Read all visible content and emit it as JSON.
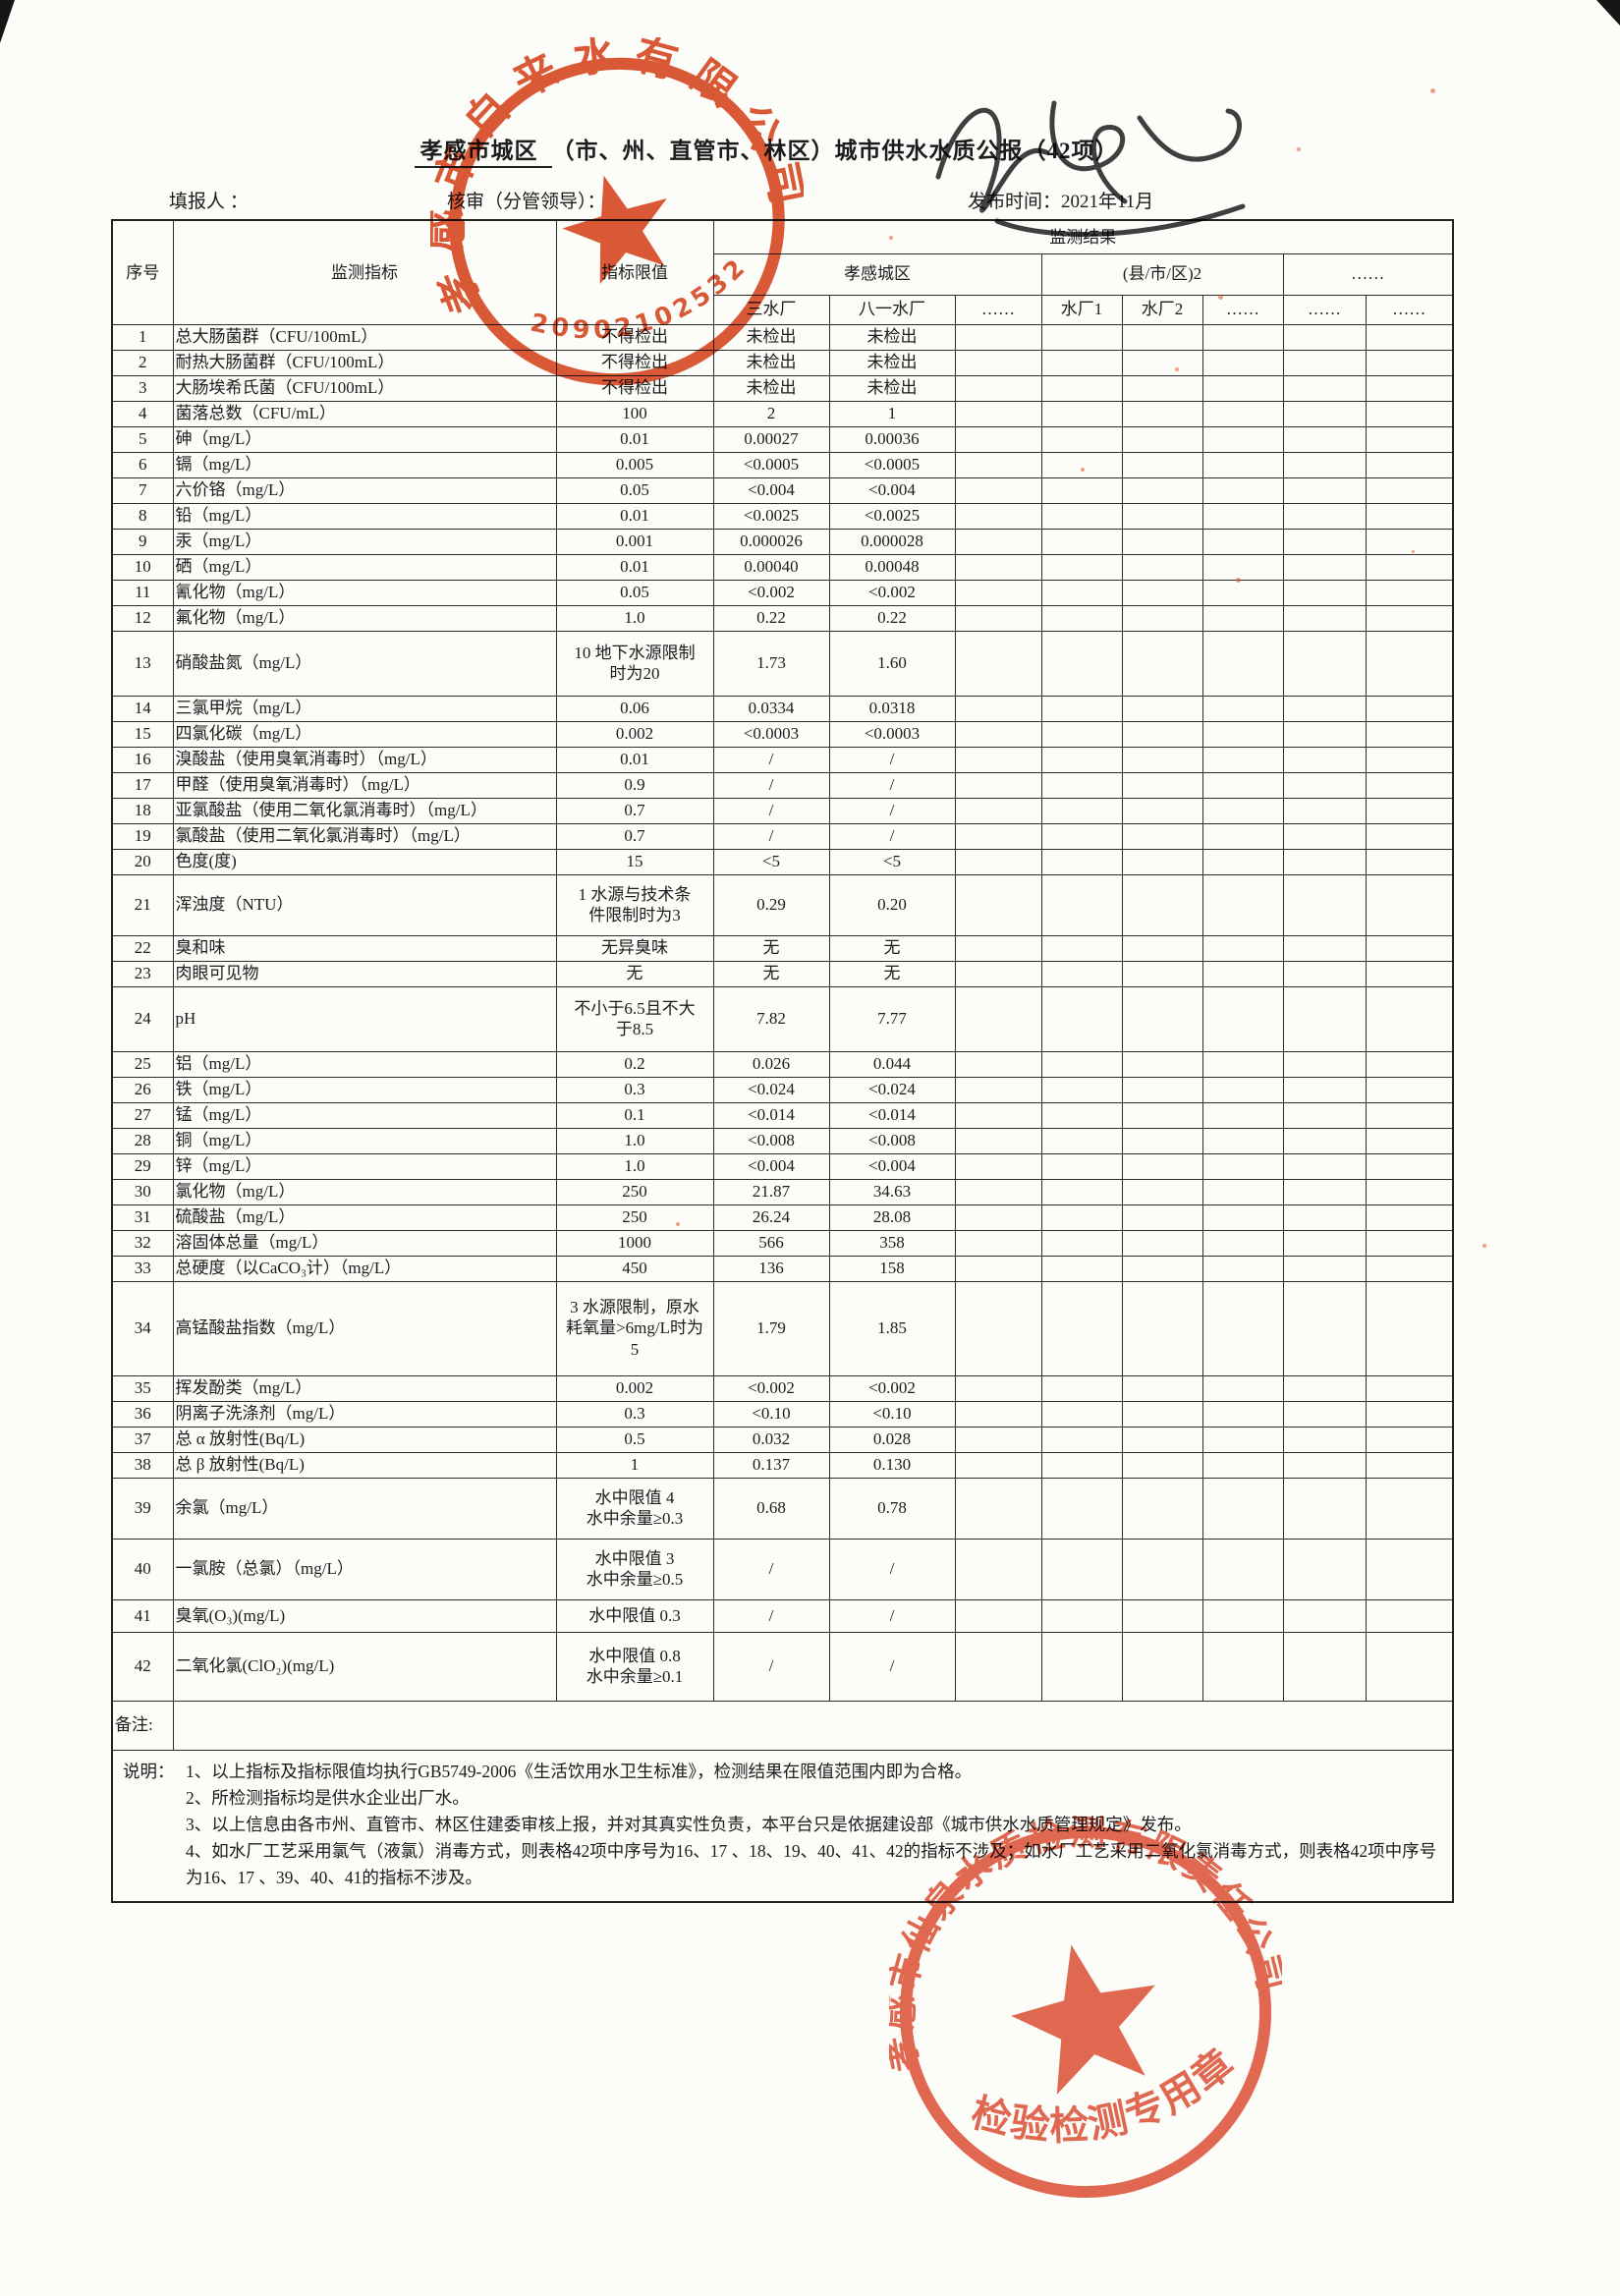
{
  "page": {
    "title_underlined": "孝感市城区",
    "title_rest": "（市、州、直管市、林区）城市供水水质公报（42项）",
    "filler_label": "填报人 ：",
    "reviewer_label": "核审（分管领导）：",
    "publish_label": "发布时间：2021年11月"
  },
  "table": {
    "headers": {
      "seq": "序号",
      "indicator": "监测指标",
      "limit": "指标限值",
      "results": "监测结果",
      "group1": "孝感城区",
      "group2": "(县/市/区)2",
      "group3": "……",
      "sub": [
        "三水厂",
        "八一水厂",
        "……",
        "水厂1",
        "水厂2",
        "……",
        "……",
        "……"
      ]
    },
    "rows": [
      {
        "no": "1",
        "name": "总大肠菌群（CFU/100mL）",
        "limit": "不得检出",
        "v1": "未检出",
        "v2": "未检出"
      },
      {
        "no": "2",
        "name": "耐热大肠菌群（CFU/100mL）",
        "limit": "不得检出",
        "v1": "未检出",
        "v2": "未检出"
      },
      {
        "no": "3",
        "name": "大肠埃希氏菌（CFU/100mL）",
        "limit": "不得检出",
        "v1": "未检出",
        "v2": "未检出"
      },
      {
        "no": "4",
        "name": "菌落总数（CFU/mL）",
        "limit": "100",
        "v1": "2",
        "v2": "1"
      },
      {
        "no": "5",
        "name": "砷（mg/L）",
        "limit": "0.01",
        "v1": "0.00027",
        "v2": "0.00036"
      },
      {
        "no": "6",
        "name": "镉（mg/L）",
        "limit": "0.005",
        "v1": "<0.0005",
        "v2": "<0.0005"
      },
      {
        "no": "7",
        "name": "六价铬（mg/L）",
        "limit": "0.05",
        "v1": "<0.004",
        "v2": "<0.004"
      },
      {
        "no": "8",
        "name": "铅（mg/L）",
        "limit": "0.01",
        "v1": "<0.0025",
        "v2": "<0.0025"
      },
      {
        "no": "9",
        "name": "汞（mg/L）",
        "limit": "0.001",
        "v1": "0.000026",
        "v2": "0.000028"
      },
      {
        "no": "10",
        "name": "硒（mg/L）",
        "limit": "0.01",
        "v1": "0.00040",
        "v2": "0.00048"
      },
      {
        "no": "11",
        "name": "氰化物（mg/L）",
        "limit": "0.05",
        "v1": "<0.002",
        "v2": "<0.002"
      },
      {
        "no": "12",
        "name": "氟化物（mg/L）",
        "limit": "1.0",
        "v1": "0.22",
        "v2": "0.22"
      },
      {
        "no": "13",
        "name": "硝酸盐氮（mg/L）",
        "limit": "10 地下水源限制\n时为20",
        "v1": "1.73",
        "v2": "1.60",
        "h": 66
      },
      {
        "no": "14",
        "name": "三氯甲烷（mg/L）",
        "limit": "0.06",
        "v1": "0.0334",
        "v2": "0.0318"
      },
      {
        "no": "15",
        "name": "四氯化碳（mg/L）",
        "limit": "0.002",
        "v1": "<0.0003",
        "v2": "<0.0003"
      },
      {
        "no": "16",
        "name": "溴酸盐（使用臭氧消毒时）（mg/L）",
        "limit": "0.01",
        "v1": "/",
        "v2": "/"
      },
      {
        "no": "17",
        "name": "甲醛（使用臭氧消毒时）（mg/L）",
        "limit": "0.9",
        "v1": "/",
        "v2": "/"
      },
      {
        "no": "18",
        "name": "亚氯酸盐（使用二氧化氯消毒时）（mg/L）",
        "limit": "0.7",
        "v1": "/",
        "v2": "/"
      },
      {
        "no": "19",
        "name": "氯酸盐（使用二氧化氯消毒时）（mg/L）",
        "limit": "0.7",
        "v1": "/",
        "v2": "/"
      },
      {
        "no": "20",
        "name": "色度(度)",
        "limit": "15",
        "v1": "<5",
        "v2": "<5"
      },
      {
        "no": "21",
        "name": "浑浊度（NTU）",
        "limit": "1  水源与技术条\n件限制时为3",
        "v1": "0.29",
        "v2": "0.20",
        "h": 62
      },
      {
        "no": "22",
        "name": "臭和味",
        "limit": "无异臭味",
        "v1": "无",
        "v2": "无"
      },
      {
        "no": "23",
        "name": "肉眼可见物",
        "limit": "无",
        "v1": "无",
        "v2": "无"
      },
      {
        "no": "24",
        "name": "pH",
        "limit": "不小于6.5且不大\n于8.5",
        "v1": "7.82",
        "v2": "7.77",
        "h": 66
      },
      {
        "no": "25",
        "name": "铝（mg/L）",
        "limit": "0.2",
        "v1": "0.026",
        "v2": "0.044"
      },
      {
        "no": "26",
        "name": "铁（mg/L）",
        "limit": "0.3",
        "v1": "<0.024",
        "v2": "<0.024"
      },
      {
        "no": "27",
        "name": "锰（mg/L）",
        "limit": "0.1",
        "v1": "<0.014",
        "v2": "<0.014"
      },
      {
        "no": "28",
        "name": "铜（mg/L）",
        "limit": "1.0",
        "v1": "<0.008",
        "v2": "<0.008"
      },
      {
        "no": "29",
        "name": "锌（mg/L）",
        "limit": "1.0",
        "v1": "<0.004",
        "v2": "<0.004"
      },
      {
        "no": "30",
        "name": "氯化物（mg/L）",
        "limit": "250",
        "v1": "21.87",
        "v2": "34.63"
      },
      {
        "no": "31",
        "name": "硫酸盐（mg/L）",
        "limit": "250",
        "v1": "26.24",
        "v2": "28.08"
      },
      {
        "no": "32",
        "name": "溶固体总量（mg/L）",
        "limit": "1000",
        "v1": "566",
        "v2": "358"
      },
      {
        "no": "33",
        "name": "总硬度（以CaCO₃计）（mg/L）",
        "limit": "450",
        "v1": "136",
        "v2": "158"
      },
      {
        "no": "34",
        "name": "高锰酸盐指数（mg/L）",
        "limit": "3 水源限制，原水\n耗氧量>6mg/L时为\n5",
        "v1": "1.79",
        "v2": "1.85",
        "h": 96
      },
      {
        "no": "35",
        "name": "挥发酚类（mg/L）",
        "limit": "0.002",
        "v1": "<0.002",
        "v2": "<0.002"
      },
      {
        "no": "36",
        "name": "阴离子洗涤剂（mg/L）",
        "limit": "0.3",
        "v1": "<0.10",
        "v2": "<0.10"
      },
      {
        "no": "37",
        "name": "总 α 放射性(Bq/L)",
        "limit": "0.5",
        "v1": "0.032",
        "v2": "0.028"
      },
      {
        "no": "38",
        "name": "总 β 放射性(Bq/L)",
        "limit": "1",
        "v1": "0.137",
        "v2": "0.130"
      },
      {
        "no": "39",
        "name": "余氯（mg/L）",
        "limit": "水中限值 4\n水中余量≥0.3",
        "v1": "0.68",
        "v2": "0.78",
        "h": 62
      },
      {
        "no": "40",
        "name": "一氯胺（总氯）（mg/L）",
        "limit": "水中限值 3\n水中余量≥0.5",
        "v1": "/",
        "v2": "/",
        "h": 62
      },
      {
        "no": "41",
        "name": "臭氧(O₃)(mg/L)",
        "limit": "水中限值 0.3",
        "v1": "/",
        "v2": "/",
        "h": 33
      },
      {
        "no": "42",
        "name": "二氧化氯(ClO₂)(mg/L)",
        "limit": "水中限值 0.8\n水中余量≥0.1",
        "v1": "/",
        "v2": "/",
        "h": 70
      }
    ],
    "remark_label": "备注:",
    "notes_label": "说明：",
    "notes": [
      "1、以上指标及指标限值均执行GB5749-2006《生活饮用水卫生标准》，检测结果在限值范围内即为合格。",
      "2、所检测指标均是供水企业出厂水。",
      "3、以上信息由各市州、直管市、林区住建委审核上报，并对其真实性负责，本平台只是依据建设部《城市供水水质管理规定》发布。",
      "4、如水厂工艺采用氯气（液氯）消毒方式，则表格42项中序号为16、17 、18、19、40、41、42的指标不涉及；如水厂工艺采用二氧化氯消毒方式，则表格42项中序号 为16、17 、39、40、41的指标不涉及。"
    ]
  },
  "stamps": {
    "top": {
      "company": "孝感市自来水有限公司",
      "code": "4209021025321"
    },
    "bottom": {
      "company": "孝感市仙泉水质检测有限责任公司",
      "label": "检验检测专用章"
    }
  }
}
